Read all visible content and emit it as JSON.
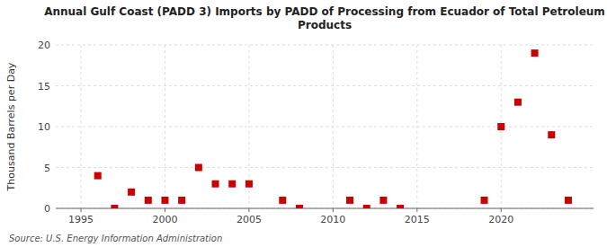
{
  "chart_data": {
    "type": "scatter",
    "title": "Annual Gulf Coast (PADD 3) Imports by PADD of Processing from Ecuador of Total Petroleum\nProducts",
    "ylabel": "Thousand Barrels per Day",
    "annotations": [
      "Source: U.S. Energy Information Administration"
    ],
    "x": [
      1996,
      1997,
      1998,
      1999,
      2000,
      2001,
      2002,
      2003,
      2004,
      2005,
      2007,
      2008,
      2011,
      2012,
      2013,
      2014,
      2019,
      2020,
      2021,
      2022,
      2023,
      2024
    ],
    "values": [
      4.0,
      0.0,
      2.0,
      1.0,
      1.0,
      1.0,
      5.0,
      3.0,
      3.0,
      3.0,
      1.0,
      0.0,
      1.0,
      0.0,
      1.0,
      0.0,
      1.0,
      10.0,
      13.0,
      19.0,
      9.0,
      1.0
    ],
    "color": "#cc0000",
    "marker": "square",
    "xlim": [
      1993.5,
      2025.5
    ],
    "ylim": [
      0,
      20
    ],
    "xticks": [
      1995,
      2000,
      2005,
      2010,
      2015,
      2020
    ],
    "yticks": [
      0,
      5,
      10,
      15,
      20
    ],
    "grid": true
  }
}
